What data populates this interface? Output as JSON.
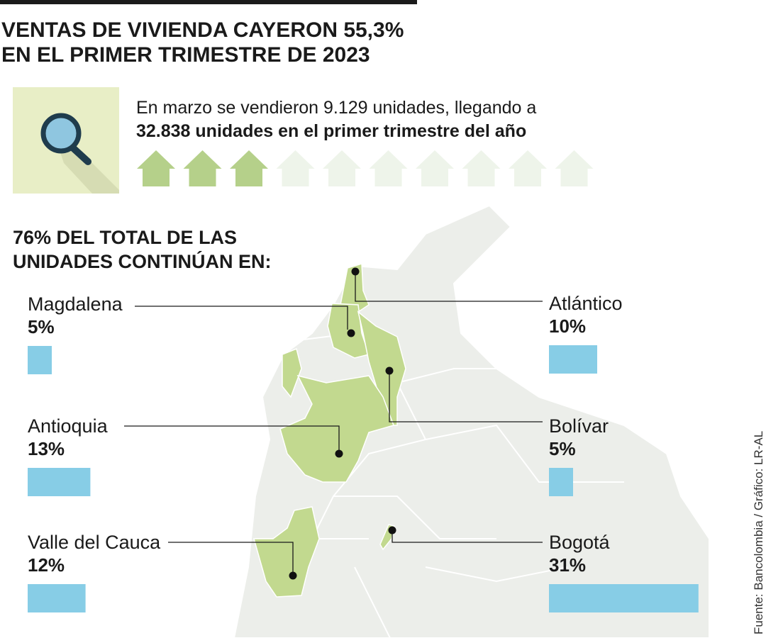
{
  "chart_data": {
    "type": "bar",
    "title": [
      "VENTAS DE VIVIENDA CAYERON 55,3%",
      "EN EL PRIMER TRIMESTRE DE 2023"
    ],
    "subtitle": [
      "En marzo se vendieron 9.129 unidades, llegando a",
      "32.838 unidades en el primer trimestre del año"
    ],
    "heading": [
      "76% DEL TOTAL DE LAS",
      "UNIDADES CONTINÚAN EN:"
    ],
    "categories": [
      "Magdalena",
      "Atlántico",
      "Antioquia",
      "Bolívar",
      "Valle del Cauca",
      "Bogotá"
    ],
    "values": [
      5,
      10,
      13,
      5,
      12,
      31
    ],
    "value_labels": [
      "5%",
      "10%",
      "13%",
      "5%",
      "12%",
      "31%"
    ],
    "color": "#87cde6",
    "source": "Fuente: Bancolombia / Gráfico: LR-AL"
  }
}
